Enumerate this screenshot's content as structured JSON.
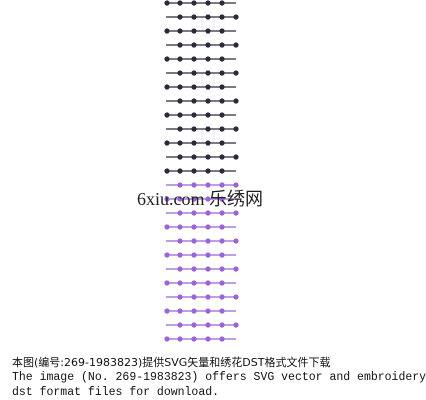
{
  "watermark": "6xiu.com 乐绣网",
  "caption": [
    "本图(编号:269-1983823)提供SVG矢量和绣花DST格式文件下载",
    "The image (No. 269-1983823) offers SVG vector and embroidery",
    "dst format files for download."
  ]
}
